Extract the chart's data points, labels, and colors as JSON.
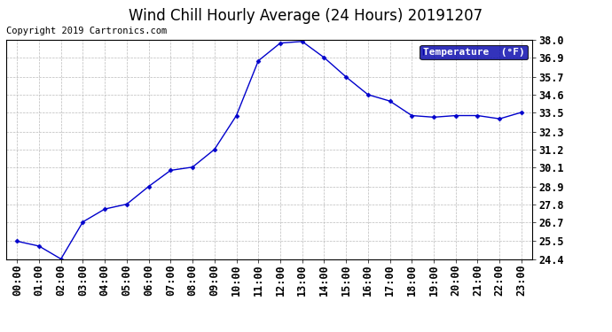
{
  "title": "Wind Chill Hourly Average (24 Hours) 20191207",
  "copyright": "Copyright 2019 Cartronics.com",
  "legend_label": "Temperature  (°F)",
  "x_labels": [
    "00:00",
    "01:00",
    "02:00",
    "03:00",
    "04:00",
    "05:00",
    "06:00",
    "07:00",
    "08:00",
    "09:00",
    "10:00",
    "11:00",
    "12:00",
    "13:00",
    "14:00",
    "15:00",
    "16:00",
    "17:00",
    "18:00",
    "19:00",
    "20:00",
    "21:00",
    "22:00",
    "23:00"
  ],
  "y_values": [
    25.5,
    25.2,
    24.4,
    26.7,
    27.5,
    27.8,
    28.9,
    29.9,
    30.1,
    31.2,
    33.3,
    36.7,
    37.8,
    37.9,
    36.9,
    35.7,
    34.6,
    34.2,
    33.3,
    33.2,
    33.3,
    33.3,
    33.1,
    33.5
  ],
  "ylim_min": 24.4,
  "ylim_max": 38.0,
  "ytick_vals": [
    24.4,
    25.5,
    26.7,
    27.8,
    28.9,
    30.1,
    31.2,
    32.3,
    33.5,
    34.6,
    35.7,
    36.9,
    38.0
  ],
  "ytick_labels": [
    "24.4",
    "25.5",
    "26.7",
    "27.8",
    "28.9",
    "30.1",
    "31.2",
    "32.3",
    "33.5",
    "34.6",
    "35.7",
    "36.9",
    "38.0"
  ],
  "line_color": "#0000cc",
  "marker_color": "#0000cc",
  "marker": "D",
  "marker_size": 2.5,
  "bg_color": "#ffffff",
  "grid_color": "#bbbbbb",
  "title_fontsize": 12,
  "copyright_fontsize": 7.5,
  "tick_fontsize": 8.5,
  "legend_bg": "#0000aa",
  "legend_text_color": "#ffffff",
  "legend_fontsize": 8
}
